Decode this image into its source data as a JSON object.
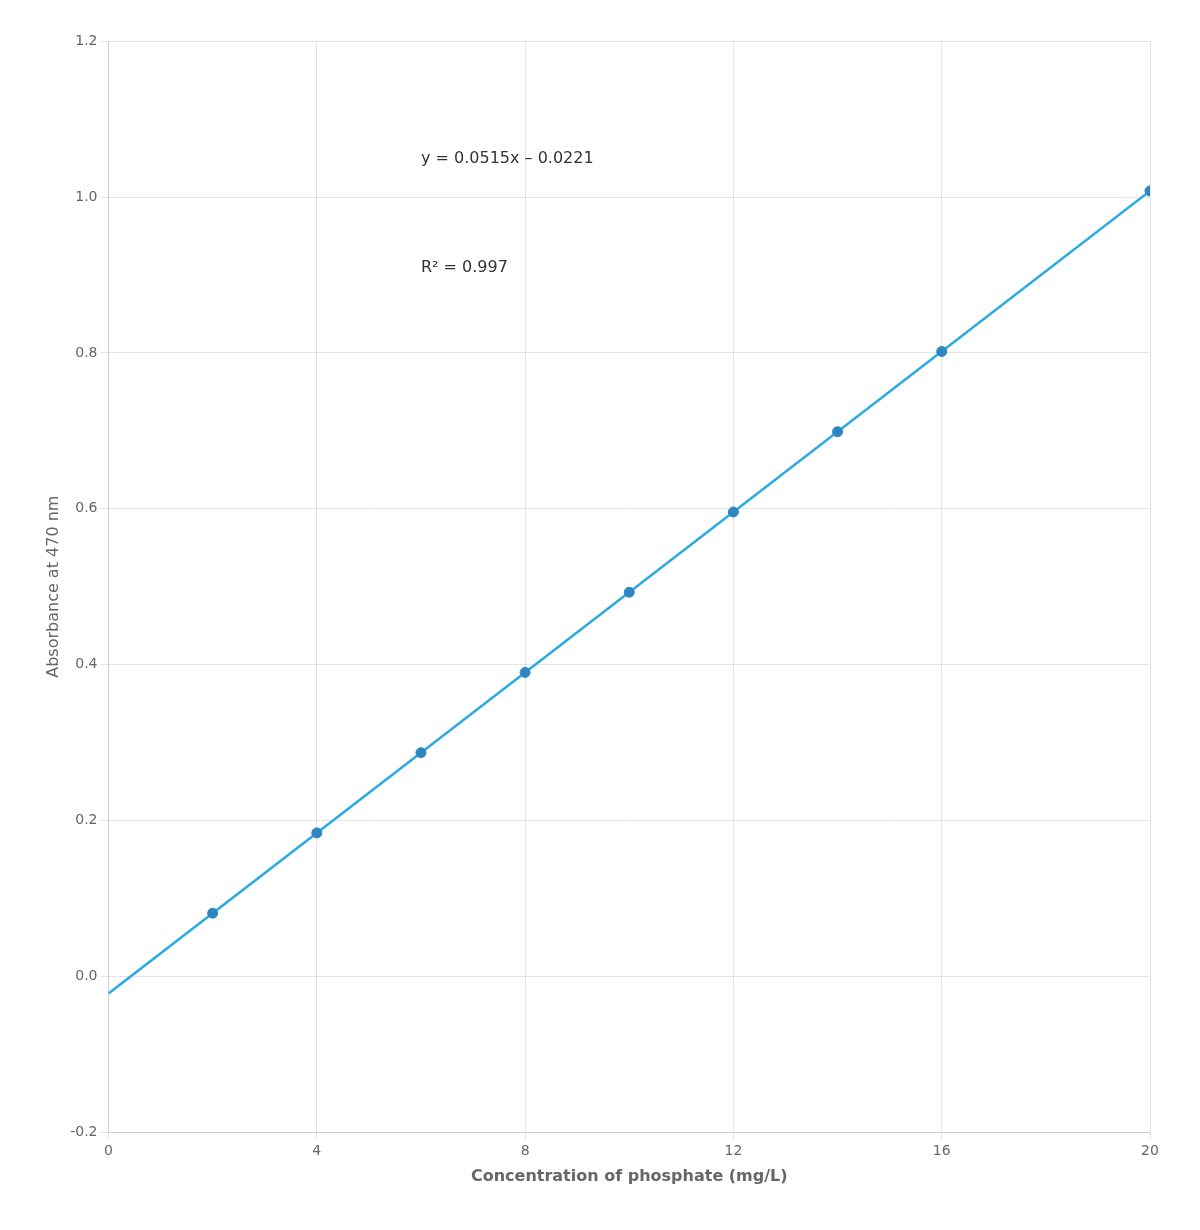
{
  "chart_data": {
    "type": "scatter",
    "xlabel": "Concentration of phosphate (mg/L)",
    "ylabel": "Absorbance at 470 nm",
    "annotations": [
      "y = 0.0515x – 0.0221",
      "R² = 0.997"
    ],
    "series": [
      {
        "type": "line",
        "color": "#29ABE2",
        "line_style": "solid",
        "x": [
          0,
          20
        ],
        "values": [
          -0.0221,
          1.0079
        ]
      },
      {
        "type": "scatter",
        "color": "#2E86C1",
        "marker": "circle",
        "x": [
          2,
          4,
          6,
          8,
          10,
          12,
          14,
          16,
          20
        ],
        "values": [
          0.0809,
          0.1839,
          0.2869,
          0.3899,
          0.4929,
          0.5959,
          0.6989,
          0.8019,
          1.0079
        ]
      }
    ],
    "xlim": [
      0,
      20
    ],
    "xticks": [
      0,
      4,
      8,
      12,
      16,
      20
    ],
    "ylim": [
      -0.2,
      1.2
    ],
    "yticks": [
      -0.2,
      {
        "value": 0,
        "label": "0.0"
      },
      0.2,
      0.4,
      0.6,
      0.8,
      {
        "value": 1,
        "label": "1.0"
      },
      1.2
    ],
    "grid": true
  }
}
